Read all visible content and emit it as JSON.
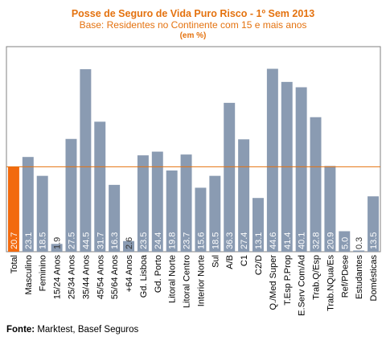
{
  "chart_data": {
    "type": "bar",
    "title": "Posse de Seguro de Vida Puro Risco - 1º Sem 2013",
    "subtitle": "Base: Residentes no Continente com 15 e mais anos",
    "unit_note": "(em %)",
    "categories": [
      "Total",
      "Masculino",
      "Feminino",
      "15/24 Anos",
      "25/34 Anos",
      "35/44 Anos",
      "45/54 Anos",
      "55/64 Anos",
      "+64 Anos",
      "Gd. Lisboa",
      "Gd. Porto",
      "Litoral Norte",
      "Litoral Centro",
      "Interior Norte",
      "Sul",
      "A/B",
      "C1",
      "C2/D",
      "Q./Med Super",
      "T.Esp P.Prop",
      "E.Serv Com/Ad",
      "Trab.Q/Esp",
      "Trab.NQua/Es",
      "Ref/PDese",
      "Estudantes",
      "Domésticas"
    ],
    "values": [
      20.7,
      23.1,
      18.5,
      1.9,
      27.5,
      44.5,
      31.7,
      16.3,
      2.6,
      23.5,
      24.4,
      19.8,
      23.7,
      15.6,
      18.5,
      36.3,
      27.4,
      13.1,
      44.6,
      41.4,
      40.1,
      32.8,
      20.9,
      5.0,
      0.3,
      13.5
    ],
    "value_labels": [
      "20.7",
      "23.1",
      "18.5",
      "1.9",
      "27.5",
      "44.5",
      "31.7",
      "16.3",
      "2.6",
      "23.5",
      "24.4",
      "19.8",
      "23.7",
      "15.6",
      "18.5",
      "36.3",
      "27.4",
      "13.1",
      "44.6",
      "41.4",
      "40.1",
      "32.8",
      "20.9",
      "5.0",
      "0.3",
      "13.5"
    ],
    "ylim": [
      0,
      50
    ],
    "reference_line": 20.7,
    "highlight_index": 0,
    "grid": false,
    "colors": {
      "bar": "#8a9bb2",
      "highlight_bar": "#f26a0f",
      "reference_line": "#e4720f",
      "bar_label_text": "#ffffff",
      "title": "#e4720f",
      "axis": "#808080"
    }
  },
  "footer": {
    "source_label": "Fonte:",
    "source_text": " Marktest, Basef Seguros"
  }
}
